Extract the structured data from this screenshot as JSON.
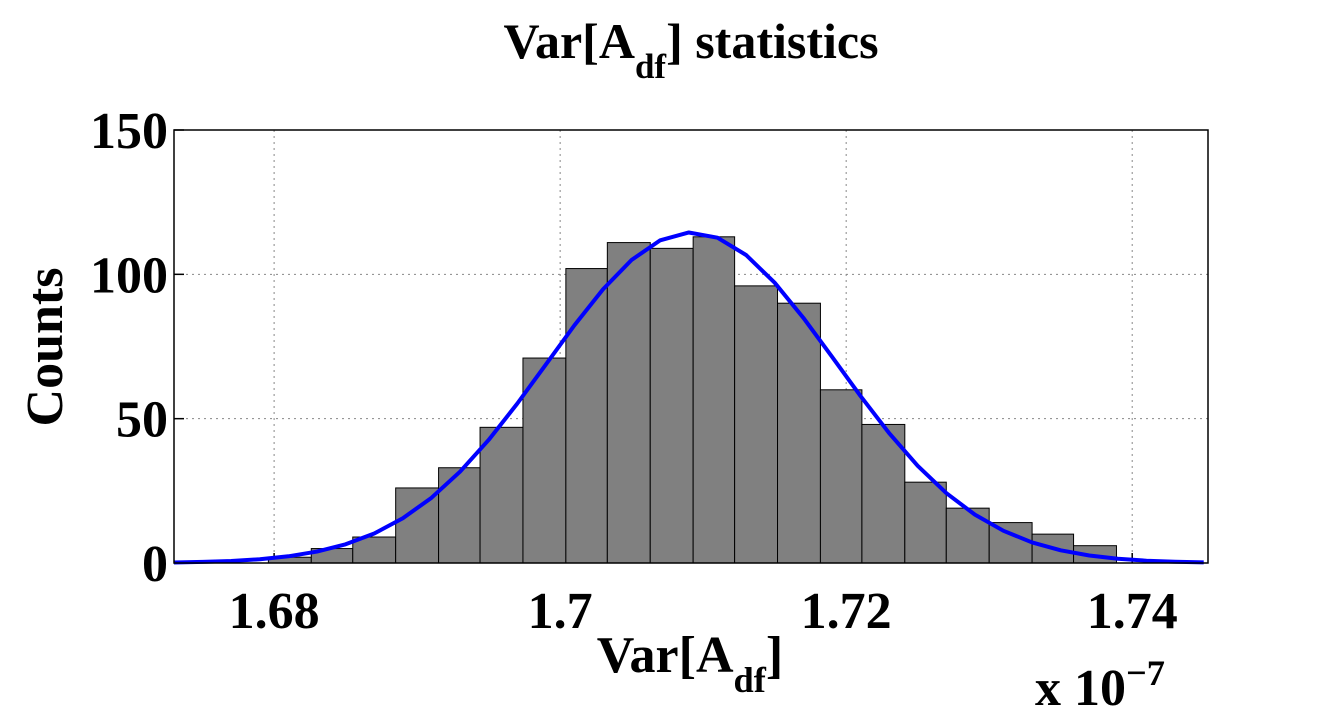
{
  "chart_data": {
    "type": "histogram",
    "title": "Var[A_{df}] statistics",
    "xlabel": "Var[A_{df}]",
    "ylabel": "Counts",
    "x_multiplier": "x 10^{−7}",
    "bins": [
      1.6796,
      1.6826,
      1.6855,
      1.6885,
      1.6915,
      1.6944,
      1.6974,
      1.7004,
      1.7033,
      1.7063,
      1.7093,
      1.7122,
      1.7152,
      1.7182,
      1.7211,
      1.7241,
      1.727,
      1.73,
      1.733,
      1.7359,
      1.7389
    ],
    "values": [
      2,
      5,
      9,
      26,
      33,
      47,
      71,
      102,
      111,
      109,
      113,
      96,
      90,
      60,
      48,
      28,
      19,
      14,
      10,
      6
    ],
    "color": "#808080",
    "overlay": {
      "type": "line",
      "color": "#0000ff",
      "x": [
        1.673,
        1.675,
        1.677,
        1.679,
        1.681,
        1.683,
        1.685,
        1.687,
        1.689,
        1.691,
        1.693,
        1.695,
        1.697,
        1.699,
        1.701,
        1.703,
        1.705,
        1.707,
        1.709,
        1.711,
        1.713,
        1.715,
        1.717,
        1.719,
        1.721,
        1.723,
        1.725,
        1.727,
        1.729,
        1.731,
        1.733,
        1.735,
        1.737,
        1.739,
        1.741,
        1.743,
        1.745
      ],
      "y": [
        0.19,
        0.37,
        0.71,
        1.31,
        2.32,
        3.96,
        6.49,
        10.22,
        15.5,
        22.58,
        31.64,
        42.62,
        55.21,
        68.76,
        82.36,
        94.84,
        105.0,
        111.8,
        114.5,
        112.7,
        106.7,
        97.1,
        84.97,
        71.5,
        57.87,
        45.02,
        33.68,
        24.23,
        16.75,
        11.15,
        7.13,
        4.39,
        2.59,
        1.47,
        0.8,
        0.42,
        0.21
      ]
    },
    "xlim": [
      1.673,
      1.7453
    ],
    "ylim": [
      0,
      150
    ],
    "xticks": [
      1.68,
      1.7,
      1.72,
      1.74
    ],
    "yticks": [
      0,
      50,
      100,
      150
    ],
    "grid": true
  }
}
